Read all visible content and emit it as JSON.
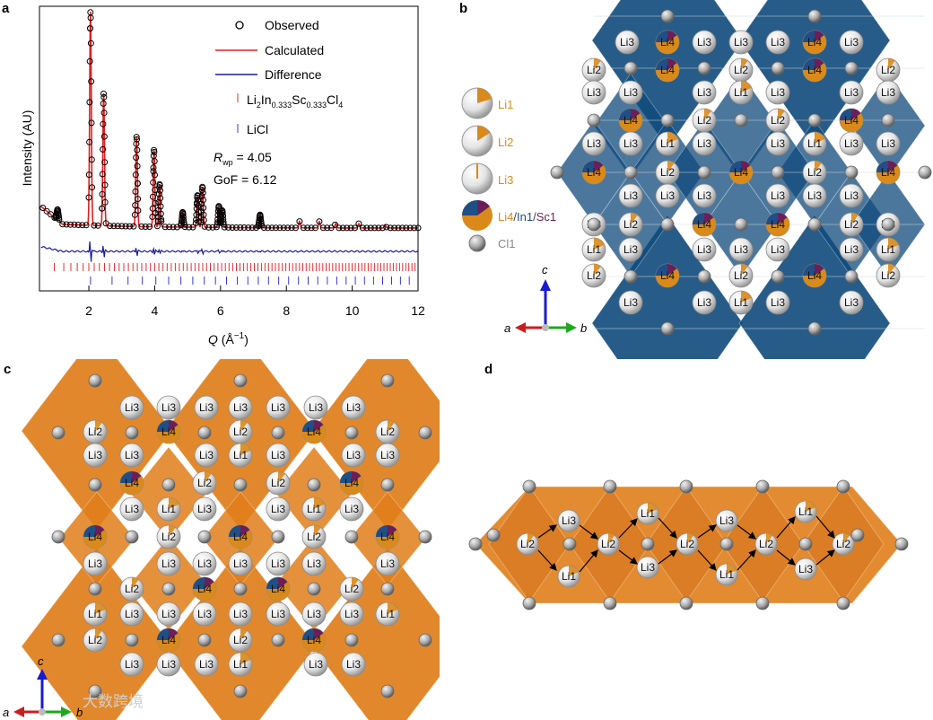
{
  "panel_labels": {
    "a": "a",
    "b": "b",
    "c": "c",
    "d": "d"
  },
  "panel_a": {
    "ylabel": "Intensity (AU)",
    "xlabel_q": "Q",
    "xlabel_unit": " (Å",
    "xlabel_exp": "−1",
    "xlabel_close": ")",
    "x_ticks": [
      "2",
      "4",
      "6",
      "8",
      "10",
      "12"
    ],
    "legend": {
      "observed": "Observed",
      "calculated": "Calculated",
      "difference": "Difference",
      "phase1": {
        "el1": "Li",
        "s1": "2",
        "el2": "In",
        "s2": "0.333",
        "el3": "Sc",
        "s3": "0.333",
        "el4": "Cl",
        "s4": "4"
      },
      "phase2": "LiCl"
    },
    "rwp": {
      "r": "R",
      "sub": "wp",
      "val": " = 4.05"
    },
    "gof": "GoF = 6.12"
  },
  "legend_b": {
    "li1": "Li1",
    "li2": "Li2",
    "li3": "Li3",
    "li4": "Li4",
    "in1": "In1",
    "sc1": "Sc1",
    "sep": "/",
    "cl1": "Cl1"
  },
  "axes": {
    "a": "a",
    "b": "b",
    "c": "c"
  },
  "atom_labels": {
    "li1": "Li1",
    "li2": "Li2",
    "li3": "Li3",
    "li4": "Li4"
  },
  "watermark": "大数跨境",
  "colors": {
    "observed": "#000000",
    "calculated": "#e02020",
    "difference": "#1a1aa0",
    "tick_phase1": "#e03030",
    "tick_phase2": "#3a3ad0",
    "li_orange": "#d98a1a",
    "in_blue": "#1f4f86",
    "sc_purple": "#6a1f5a",
    "octa_blue": "#0f4a7c",
    "octa_orange": "#e07e1a"
  },
  "chart_data": {
    "type": "line",
    "title": "",
    "xlabel": "Q (Å−1)",
    "ylabel": "Intensity (AU)",
    "xlim": [
      0.5,
      12
    ],
    "series": [
      {
        "name": "Observed",
        "marker": "open-circle",
        "peaks_q": [
          1.05,
          2.05,
          2.45,
          3.45,
          3.98,
          4.15,
          4.85,
          5.3,
          5.45,
          5.95,
          6.05,
          7.2,
          8.4,
          9.0,
          9.5,
          10.2,
          11.0
        ],
        "peaks_rel_height": [
          0.05,
          1.0,
          0.62,
          0.42,
          0.36,
          0.2,
          0.07,
          0.15,
          0.19,
          0.1,
          0.08,
          0.06,
          0.03,
          0.03,
          0.02,
          0.02,
          0.015
        ],
        "background_rel": 0.02
      },
      {
        "name": "Calculated",
        "same_as": "Observed"
      },
      {
        "name": "Difference",
        "rel_offset": -0.1
      }
    ],
    "tick_marks": [
      {
        "name": "Li2In0.333Sc0.333Cl4",
        "q_start": 0.95,
        "q_end": 12,
        "approx_count": 95
      },
      {
        "name": "LiCl",
        "q_start": 2.05,
        "q_end": 12,
        "approx_count": 30
      }
    ],
    "stats": {
      "Rwp": 4.05,
      "GoF": 6.12
    }
  }
}
